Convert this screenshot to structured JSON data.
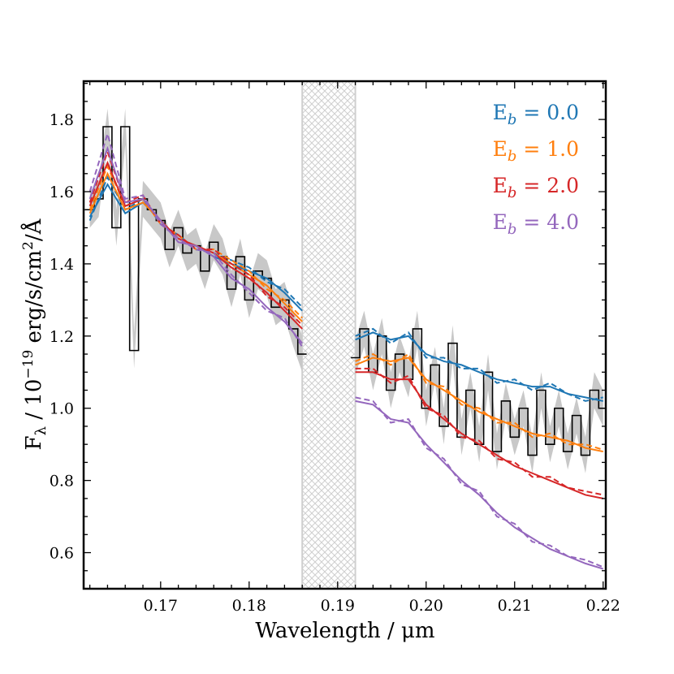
{
  "chart_data": {
    "type": "line",
    "title": "",
    "xlabel": "Wavelength / μm",
    "ylabel": {
      "main": "F",
      "sub": "λ",
      "rest1": " / 10",
      "exp": "−19",
      "rest2": " erg/s/cm",
      "exp2": "2",
      "rest3": "/Å"
    },
    "xlim": [
      0.1613,
      0.2203
    ],
    "ylim": [
      0.5,
      1.906
    ],
    "xticks": [
      0.17,
      0.18,
      0.19,
      0.2,
      0.21,
      0.22
    ],
    "xtick_labels": [
      "0.17",
      "0.18",
      "0.19",
      "0.20",
      "0.21",
      "0.22"
    ],
    "yticks": [
      0.6,
      0.8,
      1.0,
      1.2,
      1.4,
      1.6,
      1.8
    ],
    "ytick_labels": [
      "0.6",
      "0.8",
      "1.0",
      "1.2",
      "1.4",
      "1.6",
      "1.8"
    ],
    "masked_region": [
      0.186,
      0.192
    ],
    "legend_position": "top-right",
    "observed": {
      "color": "#000000",
      "error": 0.05,
      "segments": [
        {
          "x_start": 0.162,
          "x_step": 0.001,
          "y": [
            1.55,
            1.58,
            1.78,
            1.5,
            1.78,
            1.16,
            1.58,
            1.55,
            1.52,
            1.44,
            1.5,
            1.43,
            1.45,
            1.38,
            1.46,
            1.42,
            1.33,
            1.42,
            1.3,
            1.38,
            1.36,
            1.28,
            1.3,
            1.22,
            1.15
          ]
        },
        {
          "x_start": 0.192,
          "x_step": 0.001,
          "y": [
            1.14,
            1.22,
            1.1,
            1.2,
            1.05,
            1.15,
            1.08,
            1.22,
            1.0,
            1.12,
            0.95,
            1.18,
            0.92,
            1.05,
            0.9,
            1.1,
            0.88,
            1.02,
            0.92,
            1.0,
            0.87,
            1.05,
            0.9,
            1.0,
            0.88,
            0.98,
            0.87,
            1.05,
            1.0
          ]
        }
      ]
    },
    "models_x": {
      "left_start": 0.162,
      "right_start": 0.192,
      "step": 0.002
    },
    "series": [
      {
        "name": "E_b = 0.0",
        "label_main": "E",
        "label_sub": "b",
        "label_rest": " = 0.0",
        "color": "#1f77b4",
        "solid_left": [
          1.53,
          1.62,
          1.54,
          1.57,
          1.52,
          1.47,
          1.45,
          1.42,
          1.4,
          1.38,
          1.36,
          1.32,
          1.27
        ],
        "solid_right": [
          1.19,
          1.21,
          1.19,
          1.2,
          1.15,
          1.13,
          1.12,
          1.1,
          1.08,
          1.07,
          1.06,
          1.06,
          1.04,
          1.03,
          1.02
        ],
        "dashed_left": [
          1.52,
          1.64,
          1.55,
          1.58,
          1.51,
          1.48,
          1.44,
          1.43,
          1.41,
          1.39,
          1.35,
          1.33,
          1.28
        ],
        "dashed_right": [
          1.2,
          1.22,
          1.18,
          1.21,
          1.14,
          1.14,
          1.11,
          1.11,
          1.07,
          1.08,
          1.05,
          1.07,
          1.04,
          1.02,
          1.03
        ]
      },
      {
        "name": "E_b = 1.0",
        "label_main": "E",
        "label_sub": "b",
        "label_rest": " = 1.0",
        "color": "#ff7f0e",
        "solid_left": [
          1.54,
          1.65,
          1.55,
          1.57,
          1.52,
          1.47,
          1.45,
          1.43,
          1.4,
          1.37,
          1.34,
          1.29,
          1.24
        ],
        "solid_right": [
          1.12,
          1.14,
          1.13,
          1.14,
          1.08,
          1.05,
          1.02,
          0.99,
          0.97,
          0.95,
          0.93,
          0.92,
          0.91,
          0.89,
          0.88
        ],
        "dashed_left": [
          1.55,
          1.67,
          1.56,
          1.58,
          1.51,
          1.48,
          1.44,
          1.44,
          1.41,
          1.38,
          1.33,
          1.3,
          1.25
        ],
        "dashed_right": [
          1.13,
          1.15,
          1.12,
          1.15,
          1.07,
          1.06,
          1.01,
          1.0,
          0.96,
          0.96,
          0.92,
          0.93,
          0.9,
          0.9,
          0.885
        ]
      },
      {
        "name": "E_b = 2.0",
        "label_main": "E",
        "label_sub": "b",
        "label_rest": " = 2.0",
        "color": "#d62728",
        "solid_left": [
          1.56,
          1.68,
          1.56,
          1.58,
          1.52,
          1.47,
          1.45,
          1.43,
          1.39,
          1.36,
          1.32,
          1.27,
          1.22
        ],
        "solid_right": [
          1.1,
          1.1,
          1.08,
          1.08,
          1.01,
          0.97,
          0.93,
          0.9,
          0.87,
          0.84,
          0.82,
          0.8,
          0.78,
          0.76,
          0.75
        ],
        "dashed_left": [
          1.57,
          1.71,
          1.57,
          1.59,
          1.51,
          1.48,
          1.44,
          1.44,
          1.4,
          1.37,
          1.31,
          1.28,
          1.23
        ],
        "dashed_right": [
          1.11,
          1.11,
          1.07,
          1.09,
          1.0,
          0.98,
          0.92,
          0.91,
          0.86,
          0.85,
          0.81,
          0.81,
          0.78,
          0.77,
          0.76
        ]
      },
      {
        "name": "E_b = 4.0",
        "label_main": "E",
        "label_sub": "b",
        "label_rest": " = 4.0",
        "color": "#9467bd",
        "solid_left": [
          1.58,
          1.72,
          1.57,
          1.58,
          1.52,
          1.46,
          1.45,
          1.42,
          1.36,
          1.33,
          1.28,
          1.24,
          1.18
        ],
        "solid_right": [
          1.02,
          1.01,
          0.97,
          0.96,
          0.9,
          0.85,
          0.8,
          0.76,
          0.71,
          0.67,
          0.64,
          0.61,
          0.59,
          0.57,
          0.555
        ],
        "dashed_left": [
          1.6,
          1.76,
          1.58,
          1.59,
          1.51,
          1.47,
          1.44,
          1.43,
          1.37,
          1.32,
          1.27,
          1.25,
          1.17
        ],
        "dashed_right": [
          1.03,
          1.02,
          0.96,
          0.97,
          0.89,
          0.86,
          0.79,
          0.77,
          0.7,
          0.68,
          0.63,
          0.62,
          0.59,
          0.58,
          0.56
        ]
      }
    ]
  }
}
